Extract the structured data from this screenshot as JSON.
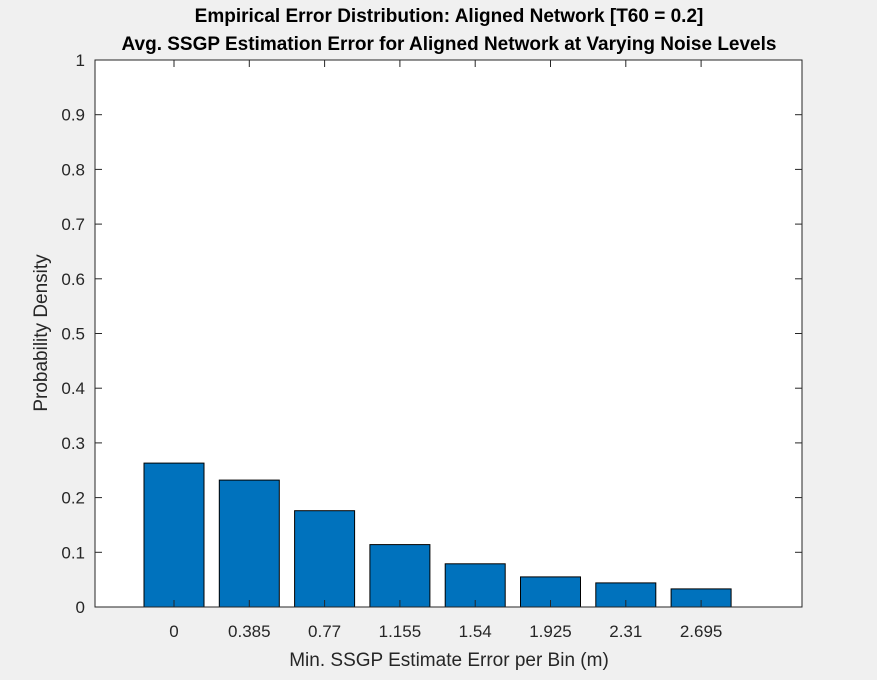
{
  "chart_data": {
    "type": "bar",
    "title_lines": [
      "Empirical Error Distribution: Aligned Network [T60 = 0.2]",
      "Avg. SSGP Estimation Error for Aligned Network at Varying Noise Levels"
    ],
    "xlabel": "Min. SSGP Estimate Error per Bin (m)",
    "ylabel": "Probability Density",
    "categories": [
      "0",
      "0.385",
      "0.77",
      "1.155",
      "1.54",
      "1.925",
      "2.31",
      "2.695"
    ],
    "values": [
      0.263,
      0.232,
      0.176,
      0.114,
      0.079,
      0.055,
      0.044,
      0.033
    ],
    "ylim": [
      0,
      1
    ],
    "yticks": [
      "0",
      "0.1",
      "0.2",
      "0.3",
      "0.4",
      "0.5",
      "0.6",
      "0.7",
      "0.8",
      "0.9",
      "1"
    ],
    "grid": false,
    "colors": {
      "bar_fill": "#0072BD",
      "bar_edge": "#000000",
      "axes_background": "#ffffff",
      "figure_background": "#f0f0f0",
      "axis_color": "#262626"
    }
  }
}
